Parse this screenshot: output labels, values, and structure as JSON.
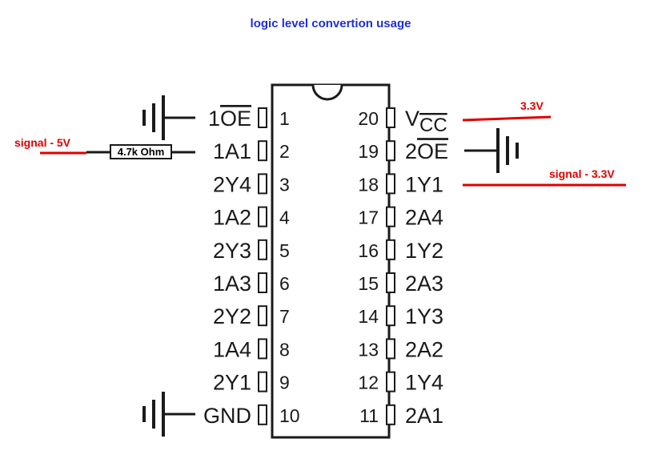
{
  "title": "logic level convertion usage",
  "colors": {
    "title": "#1f2fd6",
    "annotation": "#e00000",
    "ink": "#1a1a1a"
  },
  "left_pins": [
    {
      "number": "1",
      "name_prefix": "1",
      "name_overline": "OE",
      "ground": true
    },
    {
      "number": "2",
      "name": "1A1"
    },
    {
      "number": "3",
      "name": "2Y4"
    },
    {
      "number": "4",
      "name": "1A2"
    },
    {
      "number": "5",
      "name": "2Y3"
    },
    {
      "number": "6",
      "name": "1A3"
    },
    {
      "number": "7",
      "name": "2Y2"
    },
    {
      "number": "8",
      "name": "1A4"
    },
    {
      "number": "9",
      "name": "2Y1"
    },
    {
      "number": "10",
      "name": "GND",
      "ground": true
    }
  ],
  "right_pins": [
    {
      "number": "20",
      "name": "V",
      "name_sub": "CC"
    },
    {
      "number": "19",
      "name_prefix": "2",
      "name_overline": "OE",
      "ground": true
    },
    {
      "number": "18",
      "name": "1Y1"
    },
    {
      "number": "17",
      "name": "2A4"
    },
    {
      "number": "16",
      "name": "1Y2"
    },
    {
      "number": "15",
      "name": "2A3"
    },
    {
      "number": "14",
      "name": "1Y3"
    },
    {
      "number": "13",
      "name": "2A2"
    },
    {
      "number": "12",
      "name": "1Y4"
    },
    {
      "number": "11",
      "name": "2A1"
    }
  ],
  "annotations": {
    "vcc_supply": "3.3V",
    "input_signal": "signal - 5V",
    "output_signal": "signal - 3.3V",
    "resistor": "4.7k Ohm"
  },
  "icons": {
    "ground": "ground-icon",
    "resistor": "resistor-icon",
    "notch": "ic-notch-icon"
  }
}
